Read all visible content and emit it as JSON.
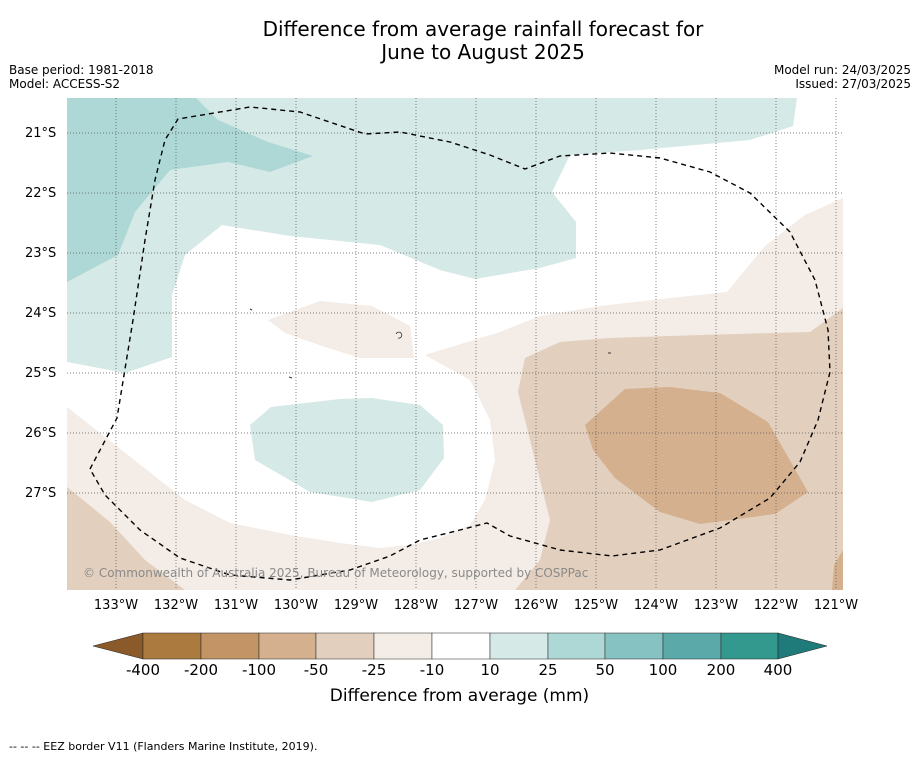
{
  "title_line1": "Difference from average rainfall forecast for",
  "title_line2": "June to August 2025",
  "base_period": "Base period: 1981-2018",
  "model": "Model: ACCESS-S2",
  "model_run": "Model run: 24/03/2025",
  "issued": "Issued: 27/03/2025",
  "credit": "© Commonwealth of Australia 2025, Bureau of Meteorology, supported by COSPPac",
  "latitudes": [
    "21°S",
    "22°S",
    "23°S",
    "24°S",
    "25°S",
    "26°S",
    "27°S"
  ],
  "longitudes": [
    "133°W",
    "132°W",
    "131°W",
    "130°W",
    "129°W",
    "128°W",
    "127°W",
    "126°W",
    "125°W",
    "124°W",
    "123°W",
    "122°W",
    "121°W"
  ],
  "colorbar": {
    "labels": [
      "-400",
      "-200",
      "-100",
      "-50",
      "-25",
      "-10",
      "10",
      "25",
      "50",
      "100",
      "200",
      "400"
    ],
    "colors": [
      "#ab7a3e",
      "#c39566",
      "#d4b08f",
      "#e3cfbd",
      "#f4ece6",
      "#ffffff",
      "#d5e9e7",
      "#aed8d6",
      "#85c2c1",
      "#5ba9a9",
      "#33998f"
    ],
    "low_color": "#8b5a2b",
    "high_color": "#1f7a7a",
    "title": "Difference from average (mm)"
  },
  "footer": "--  --  -- EEZ border V11 (Flanders Marine Institute, 2019)."
}
